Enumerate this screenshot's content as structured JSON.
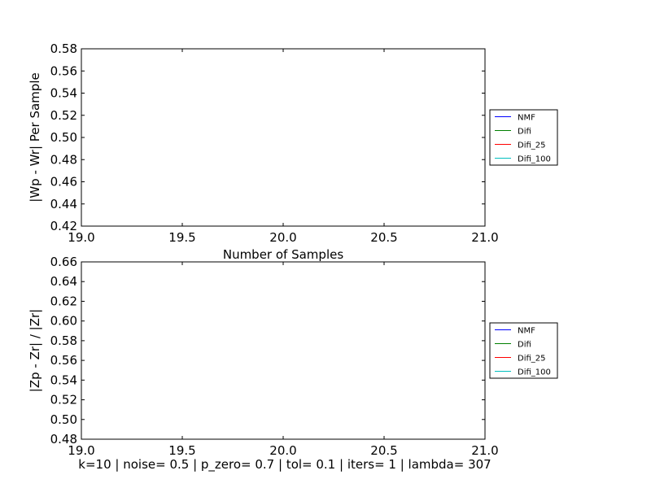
{
  "chart_data": [
    {
      "type": "line",
      "title": "",
      "xlabel": "Number of Samples",
      "ylabel": "|Wp - Wr| Per Sample",
      "xlim": [
        19.0,
        21.0
      ],
      "ylim": [
        0.42,
        0.58
      ],
      "xticks": [
        "19.0",
        "19.5",
        "20.0",
        "20.5",
        "21.0"
      ],
      "yticks": [
        "0.42",
        "0.44",
        "0.46",
        "0.48",
        "0.50",
        "0.52",
        "0.54",
        "0.56",
        "0.58"
      ],
      "grid": false,
      "legend": "outside-right",
      "series": [
        {
          "name": "NMF",
          "color": "#0000ff",
          "values": []
        },
        {
          "name": "Difi",
          "color": "#008000",
          "values": []
        },
        {
          "name": "Difi_25",
          "color": "#ff0000",
          "values": []
        },
        {
          "name": "Difi_100",
          "color": "#00bfbf",
          "values": []
        }
      ]
    },
    {
      "type": "line",
      "title": "",
      "xlabel": "",
      "ylabel": "|Zp - Zr| / |Zr|",
      "xlim": [
        19.0,
        21.0
      ],
      "ylim": [
        0.48,
        0.66
      ],
      "xticks": [
        "19.0",
        "19.5",
        "20.0",
        "20.5",
        "21.0"
      ],
      "yticks": [
        "0.48",
        "0.50",
        "0.52",
        "0.54",
        "0.56",
        "0.58",
        "0.60",
        "0.62",
        "0.64",
        "0.66"
      ],
      "grid": false,
      "legend": "outside-right",
      "series": [
        {
          "name": "NMF",
          "color": "#0000ff",
          "values": []
        },
        {
          "name": "Difi",
          "color": "#008000",
          "values": []
        },
        {
          "name": "Difi_25",
          "color": "#ff0000",
          "values": []
        },
        {
          "name": "Difi_100",
          "color": "#00bfbf",
          "values": []
        }
      ]
    }
  ],
  "footer": "k=10 | noise= 0.5 | p_zero= 0.7 | tol= 0.1 | iters= 1 | lambda= 307"
}
